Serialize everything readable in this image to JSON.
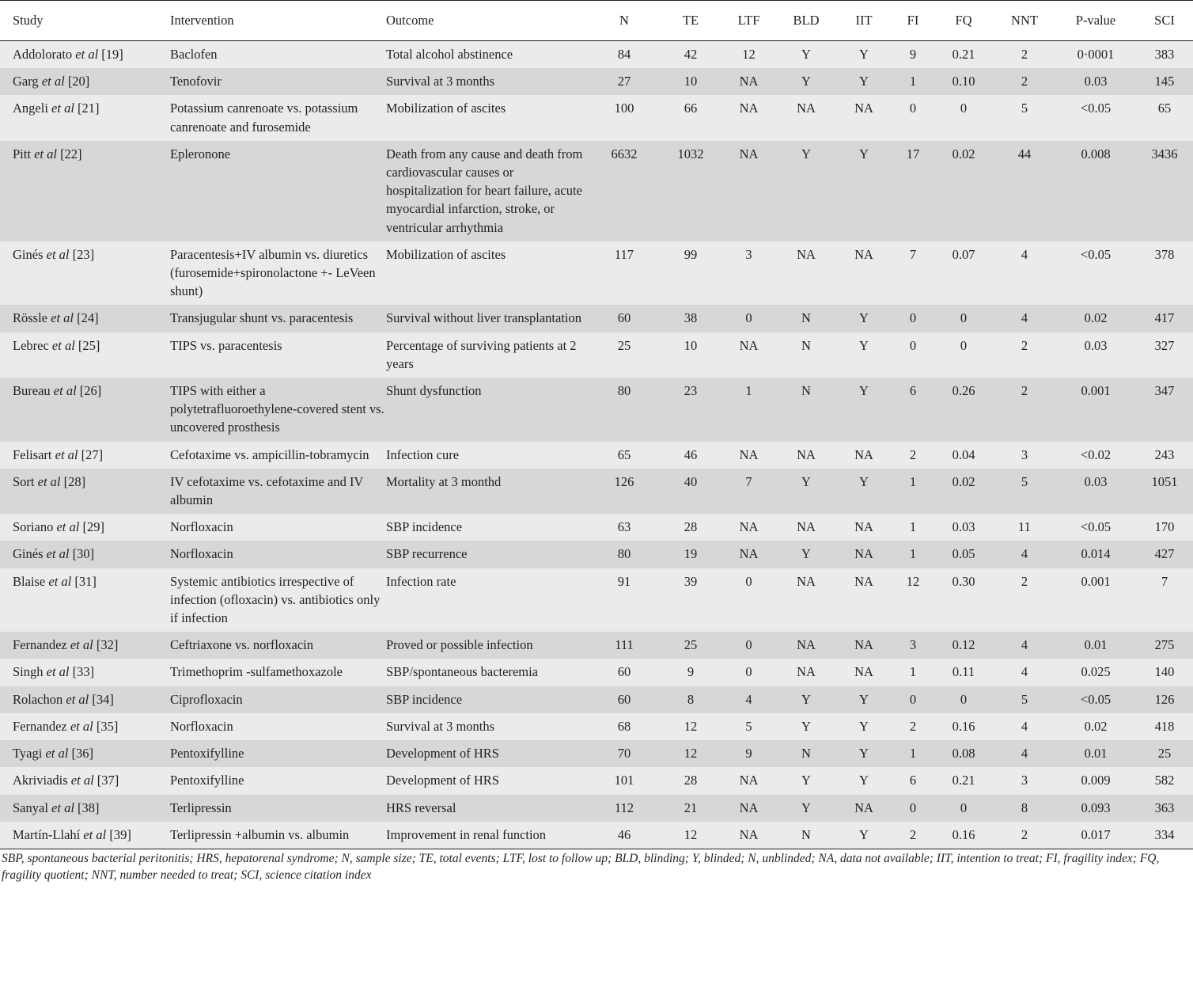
{
  "columns": [
    "Study",
    "Intervention",
    "Outcome",
    "N",
    "TE",
    "LTF",
    "BLD",
    "IIT",
    "FI",
    "FQ",
    "NNT",
    "P-value",
    "SCI"
  ],
  "rows": [
    {
      "author": "Addolorato",
      "etal": "et al",
      "ref": "[19]",
      "intervention": "Baclofen",
      "outcome": "Total alcohol abstinence",
      "values": [
        "84",
        "42",
        "12",
        "Y",
        "Y",
        "9",
        "0.21",
        "2",
        "0·0001",
        "383"
      ]
    },
    {
      "author": "Garg",
      "etal": "et al",
      "ref": "[20]",
      "intervention": "Tenofovir",
      "outcome": "Survival at 3 months",
      "values": [
        "27",
        "10",
        "NA",
        "Y",
        "Y",
        "1",
        "0.10",
        "2",
        "0.03",
        "145"
      ]
    },
    {
      "author": "Angeli",
      "etal": "et al",
      "ref": "[21]",
      "intervention": "Potassium canrenoate vs. potassium canrenoate and furosemide",
      "outcome": "Mobilization of ascites",
      "values": [
        "100",
        "66",
        "NA",
        "NA",
        "NA",
        "0",
        "0",
        "5",
        "<0.05",
        "65"
      ]
    },
    {
      "author": "Pitt",
      "etal": "et al",
      "ref": "[22]",
      "intervention": "Epleronone",
      "outcome": "Death from any cause and death from cardiovascular causes or hospitalization for heart failure, acute myocardial infarction, stroke, or ventricular arrhythmia",
      "values": [
        "6632",
        "1032",
        "NA",
        "Y",
        "Y",
        "17",
        "0.02",
        "44",
        "0.008",
        "3436"
      ]
    },
    {
      "author": "Ginés",
      "etal": "et al",
      "ref": "[23]",
      "intervention": "Paracentesis+IV albumin vs. diuretics (furosemide+spironolactone +- LeVeen shunt)",
      "outcome": "Mobilization of ascites",
      "values": [
        "117",
        "99",
        "3",
        "NA",
        "NA",
        "7",
        "0.07",
        "4",
        "<0.05",
        "378"
      ]
    },
    {
      "author": "Rössle",
      "etal": "et al",
      "ref": "[24]",
      "intervention": "Transjugular shunt vs. paracentesis",
      "outcome": "Survival without liver transplantation",
      "values": [
        "60",
        "38",
        "0",
        "N",
        "Y",
        "0",
        "0",
        "4",
        "0.02",
        "417"
      ]
    },
    {
      "author": "Lebrec",
      "etal": "et al",
      "ref": "[25]",
      "intervention": "TIPS vs. paracentesis",
      "outcome": "Percentage of surviving patients at 2 years",
      "values": [
        "25",
        "10",
        "NA",
        "N",
        "Y",
        "0",
        "0",
        "2",
        "0.03",
        "327"
      ]
    },
    {
      "author": "Bureau",
      "etal": "et al",
      "ref": "[26]",
      "intervention": "TIPS with either a polytetrafluoroethylene-covered stent vs. uncovered prosthesis",
      "outcome": "Shunt dysfunction",
      "values": [
        "80",
        "23",
        "1",
        "N",
        "Y",
        "6",
        "0.26",
        "2",
        "0.001",
        "347"
      ]
    },
    {
      "author": "Felisart",
      "etal": "et al",
      "ref": "[27]",
      "intervention": "Cefotaxime vs. ampicillin-tobramycin",
      "outcome": "Infection cure",
      "values": [
        "65",
        "46",
        "NA",
        "NA",
        "NA",
        "2",
        "0.04",
        "3",
        "<0.02",
        "243"
      ]
    },
    {
      "author": "Sort",
      "etal": "et al",
      "ref": "[28]",
      "intervention": "IV cefotaxime vs. cefotaxime and IV albumin",
      "outcome": "Mortality at 3 monthd",
      "values": [
        "126",
        "40",
        "7",
        "Y",
        "Y",
        "1",
        "0.02",
        "5",
        "0.03",
        "1051"
      ]
    },
    {
      "author": "Soriano",
      "etal": "et al",
      "ref": "[29]",
      "intervention": "Norfloxacin",
      "outcome": "SBP incidence",
      "values": [
        "63",
        "28",
        "NA",
        "NA",
        "NA",
        "1",
        "0.03",
        "11",
        "<0.05",
        "170"
      ]
    },
    {
      "author": "Ginés",
      "etal": "et al",
      "ref": "[30]",
      "intervention": "Norfloxacin",
      "outcome": "SBP recurrence",
      "values": [
        "80",
        "19",
        "NA",
        "Y",
        "NA",
        "1",
        "0.05",
        "4",
        "0.014",
        "427"
      ]
    },
    {
      "author": "Blaise",
      "etal": "et al",
      "ref": "[31]",
      "intervention": "Systemic antibiotics irrespective of infection (ofloxacin) vs. antibiotics only if infection",
      "outcome": "Infection rate",
      "values": [
        "91",
        "39",
        "0",
        "NA",
        "NA",
        "12",
        "0.30",
        "2",
        "0.001",
        "7"
      ]
    },
    {
      "author": "Fernandez",
      "etal": "et al",
      "ref": "[32]",
      "intervention": "Ceftriaxone vs. norfloxacin",
      "outcome": "Proved or possible infection",
      "values": [
        "111",
        "25",
        "0",
        "NA",
        "NA",
        "3",
        "0.12",
        "4",
        "0.01",
        "275"
      ]
    },
    {
      "author": "Singh",
      "etal": "et al",
      "ref": "[33]",
      "intervention": "Trimethoprim -sulfamethoxazole",
      "outcome": "SBP/spontaneous bacteremia",
      "values": [
        "60",
        "9",
        "0",
        "NA",
        "NA",
        "1",
        "0.11",
        "4",
        "0.025",
        "140"
      ]
    },
    {
      "author": "Rolachon",
      "etal": "et al",
      "ref": "[34]",
      "intervention": "Ciprofloxacin",
      "outcome": "SBP incidence",
      "values": [
        "60",
        "8",
        "4",
        "Y",
        "Y",
        "0",
        "0",
        "5",
        "<0.05",
        "126"
      ]
    },
    {
      "author": "Fernandez",
      "etal": "et al",
      "ref": "[35]",
      "intervention": "Norfloxacin",
      "outcome": "Survival at 3 months",
      "values": [
        "68",
        "12",
        "5",
        "Y",
        "Y",
        "2",
        "0.16",
        "4",
        "0.02",
        "418"
      ]
    },
    {
      "author": "Tyagi",
      "etal": "et al",
      "ref": "[36]",
      "intervention": "Pentoxifylline",
      "outcome": "Development of HRS",
      "values": [
        "70",
        "12",
        "9",
        "N",
        "Y",
        "1",
        "0.08",
        "4",
        "0.01",
        "25"
      ]
    },
    {
      "author": "Akriviadis",
      "etal": "et al",
      "ref": "[37]",
      "intervention": "Pentoxifylline",
      "outcome": "Development of HRS",
      "values": [
        "101",
        "28",
        "NA",
        "Y",
        "Y",
        "6",
        "0.21",
        "3",
        "0.009",
        "582"
      ]
    },
    {
      "author": "Sanyal",
      "etal": "et al",
      "ref": "[38]",
      "intervention": "Terlipressin",
      "outcome": "HRS reversal",
      "values": [
        "112",
        "21",
        "NA",
        "Y",
        "NA",
        "0",
        "0",
        "8",
        "0.093",
        "363"
      ]
    },
    {
      "author": "Martín-Llahí",
      "etal": "et al",
      "ref": "[39]",
      "intervention": "Terlipressin +albumin vs. albumin",
      "outcome": "Improvement in renal function",
      "values": [
        "46",
        "12",
        "NA",
        "N",
        "Y",
        "2",
        "0.16",
        "2",
        "0.017",
        "334"
      ]
    }
  ],
  "footnote": "SBP, spontaneous bacterial peritonitis; HRS, hepatorenal syndrome; N, sample size; TE, total events; LTF, lost to follow up; BLD, blinding; Y, blinded; N, unblinded; NA, data not available; IIT, intention to treat; FI, fragility index; FQ, fragility quotient; NNT, number needed to treat; SCI, science citation index"
}
